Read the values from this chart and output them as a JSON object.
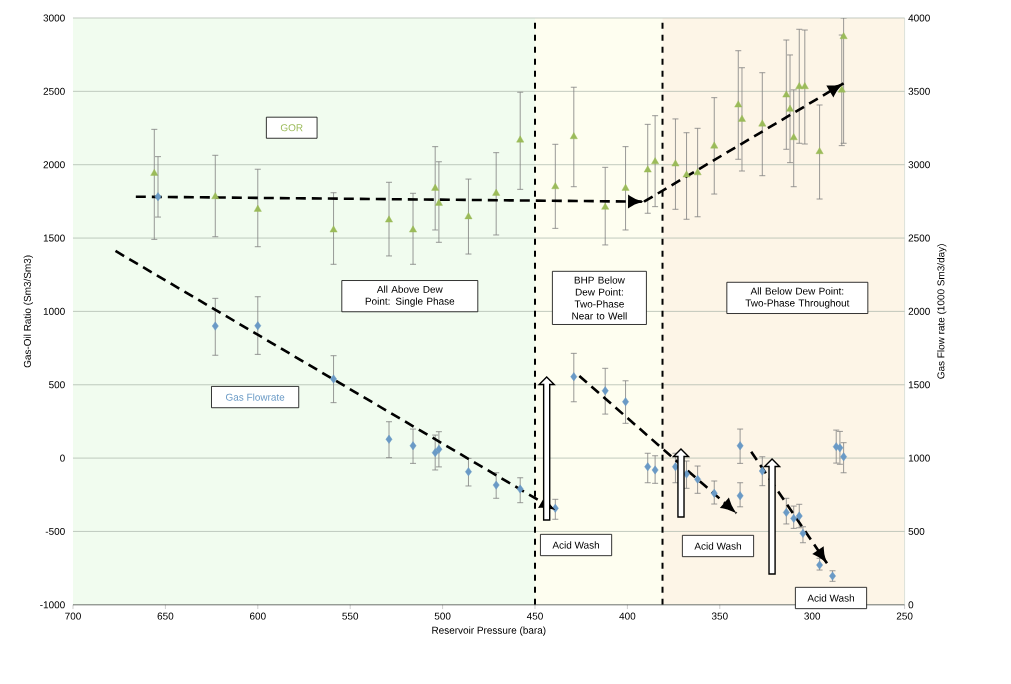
{
  "chart_data": {
    "type": "scatter",
    "xlabel": "Reservoir Pressure (bara)",
    "ylabel": "Gas-Oil Ratio (Sm3/Sm3)",
    "y2label": "Gas Flow rate (1000 Sm3/day)",
    "xlim": [
      700,
      250
    ],
    "xticks": [
      700,
      650,
      600,
      550,
      500,
      450,
      400,
      350,
      300,
      250
    ],
    "ylim": [
      -1000,
      3000
    ],
    "yticks": [
      -1000,
      -500,
      0,
      500,
      1000,
      1500,
      2000,
      2500,
      3000
    ],
    "y2lim": [
      0,
      4000
    ],
    "y2ticks": [
      0,
      500,
      1000,
      1500,
      2000,
      2500,
      3000,
      3500,
      4000
    ],
    "grid": "y",
    "series": [
      {
        "name": "GOR",
        "axis": "y",
        "marker": "triangle",
        "color": "#9bbb59",
        "x": [
          656,
          623,
          600,
          559,
          529,
          516,
          504,
          502,
          486,
          471,
          458,
          439,
          429,
          412,
          401,
          389,
          385,
          374,
          368,
          362,
          353,
          340,
          338,
          327,
          314,
          312,
          310,
          307,
          304,
          296,
          284,
          283
        ],
        "values": [
          1941,
          1782,
          1696,
          1555,
          1623,
          1555,
          1839,
          1737,
          1645,
          1805,
          2168,
          1850,
          2191,
          1710,
          1839,
          1964,
          2020,
          2005,
          1930,
          1945,
          2127,
          2407,
          2309,
          2277,
          2475,
          2378,
          2184,
          2532,
          2532,
          2089,
          2509,
          2873
        ],
        "errors": [
          [
            1491,
            2241
          ],
          [
            1509,
            2064
          ],
          [
            1441,
            1969
          ],
          [
            1321,
            1809
          ],
          [
            1378,
            1880
          ],
          [
            1321,
            1805
          ],
          [
            1555,
            2123
          ],
          [
            1471,
            2020
          ],
          [
            1391,
            1902
          ],
          [
            1521,
            2082
          ],
          [
            1832,
            2494
          ],
          [
            1566,
            2139
          ],
          [
            1850,
            2528
          ],
          [
            1453,
            1982
          ],
          [
            1555,
            2123
          ],
          [
            1669,
            2275
          ],
          [
            1714,
            2334
          ],
          [
            1696,
            2312
          ],
          [
            1628,
            2218
          ],
          [
            1645,
            2248
          ],
          [
            1800,
            2457
          ],
          [
            2037,
            2777
          ],
          [
            1957,
            2661
          ],
          [
            1925,
            2627
          ],
          [
            2105,
            2850
          ],
          [
            2014,
            2748
          ],
          [
            1850,
            2510
          ],
          [
            2146,
            2923
          ],
          [
            2141,
            2918
          ],
          [
            1766,
            2407
          ],
          [
            2130,
            2884
          ],
          [
            2146,
            3000
          ]
        ]
      },
      {
        "name": "Gas Flowrate",
        "axis": "y2",
        "marker": "diamond",
        "color": "#6a9ac6",
        "x": [
          654,
          623,
          600,
          559,
          529,
          516,
          504,
          502,
          486,
          471,
          458,
          439,
          429,
          412,
          401,
          389,
          385,
          374,
          368,
          362,
          353,
          339,
          339,
          327,
          314,
          310,
          307,
          305,
          296,
          289,
          287,
          285,
          283
        ],
        "values": [
          2782,
          1900,
          1902,
          1539,
          1128,
          1084,
          1037,
          1060,
          907,
          816,
          789,
          658,
          1555,
          1459,
          1384,
          941,
          919,
          941,
          891,
          855,
          760,
          1084,
          743,
          912,
          630,
          589,
          605,
          487,
          271,
          196,
          1078,
          1070,
          1009
        ],
        "errors": [
          [
            2643,
            3055
          ],
          [
            1701,
            2089
          ],
          [
            1707,
            2100
          ],
          [
            1378,
            1698
          ],
          [
            1003,
            1248
          ],
          [
            964,
            1198
          ],
          [
            919,
            1157
          ],
          [
            940,
            1180
          ],
          [
            810,
            998
          ],
          [
            726,
            900
          ],
          [
            696,
            866
          ],
          [
            583,
            719
          ],
          [
            1384,
            1714
          ],
          [
            1300,
            1612
          ],
          [
            1237,
            1527
          ],
          [
            832,
            1033
          ],
          [
            828,
            1016
          ],
          [
            832,
            1033
          ],
          [
            794,
            980
          ],
          [
            760,
            946
          ],
          [
            687,
            844
          ],
          [
            964,
            1198
          ],
          [
            668,
            832
          ],
          [
            812,
            1009
          ],
          [
            551,
            726
          ],
          [
            521,
            673
          ],
          [
            525,
            685
          ],
          [
            423,
            532
          ],
          [
            237,
            317
          ],
          [
            160,
            232
          ],
          [
            966,
            1191
          ],
          [
            958,
            1182
          ],
          [
            900,
            1105
          ]
        ]
      },
      {
        "type": "line",
        "axis": "y",
        "marker": "none",
        "line_style": "dashed",
        "color": "#000000",
        "x": [
          666,
          391
        ],
        "values": [
          1782,
          1748
        ]
      },
      {
        "type": "line",
        "axis": "y",
        "marker": "none",
        "line_style": "dashed",
        "color": "#000000",
        "x": [
          391,
          283
        ],
        "values": [
          1748,
          2555
        ]
      },
      {
        "type": "line",
        "axis": "y2",
        "marker": "none",
        "line_style": "dashed",
        "color": "#000000",
        "x": [
          677,
          439
        ],
        "values": [
          2412,
          646
        ]
      },
      {
        "type": "line",
        "axis": "y2",
        "marker": "none",
        "line_style": "dashed",
        "color": "#000000",
        "x": [
          426,
          341
        ],
        "values": [
          1560,
          624
        ]
      },
      {
        "type": "line",
        "axis": "y2",
        "marker": "none",
        "line_style": "dashed",
        "color": "#000000",
        "x": [
          333,
          292
        ],
        "values": [
          1043,
          283
        ]
      }
    ],
    "ref_lines": [
      {
        "axis": "x",
        "value": 450,
        "line_style": "dashed",
        "color": "#000000"
      },
      {
        "axis": "x",
        "value": 381,
        "line_style": "dashed",
        "color": "#000000"
      }
    ],
    "bands": [
      {
        "axis": "x",
        "from": 700,
        "to": 450,
        "label": "All Above Dew Point: Single Phase",
        "color": "#f1fcef"
      },
      {
        "axis": "x",
        "from": 450,
        "to": 381,
        "label": "BHP Below Dew Point: Two-Phase Near to Well",
        "color": "#fefef0"
      },
      {
        "axis": "x",
        "from": 381,
        "to": 250,
        "label": "All Below Dew Point: Two-Phase Throughout",
        "color": "#fdf5e7"
      }
    ],
    "annotations": [
      "Acid Wash",
      "Acid Wash",
      "Acid Wash"
    ]
  }
}
